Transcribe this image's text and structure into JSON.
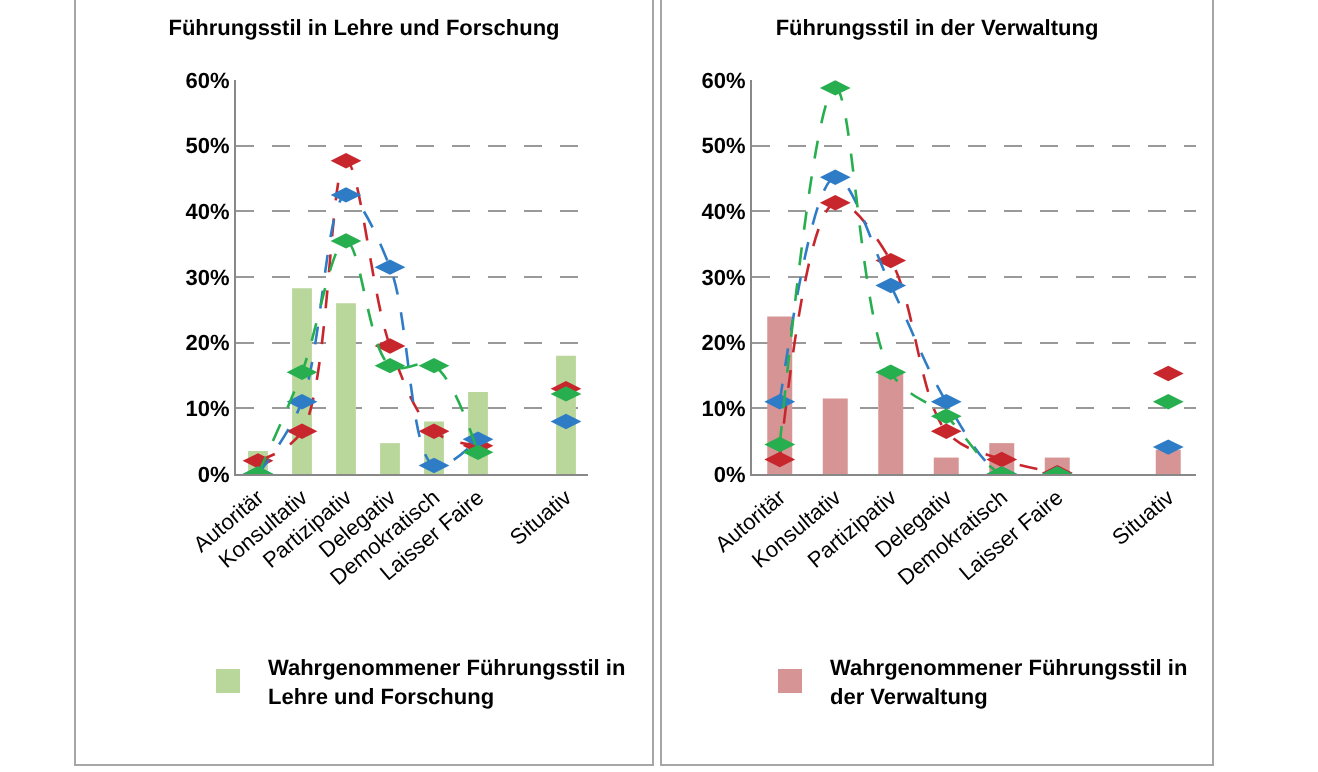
{
  "chart_data": [
    {
      "type": "bar",
      "title": "Führungsstil in Lehre und Forschung",
      "categories": [
        "Autoritär",
        "Konsultativ",
        "Partizipativ",
        "Delegativ",
        "Demokratisch",
        "Laisser Faire",
        null,
        "Situativ"
      ],
      "series": [
        {
          "name": "Wahrgenommener Führungsstil in Lehre und Forschung",
          "color": "#b9d69b",
          "values": [
            3.5,
            28.3,
            26,
            4.7,
            8,
            12.5,
            null,
            18
          ]
        },
        {
          "type": "line",
          "color": "#c8262d",
          "values": [
            2,
            6.5,
            47.7,
            19.5,
            6.5,
            4.3,
            null,
            13
          ]
        },
        {
          "type": "line",
          "color": "#2f7cc6",
          "values": [
            0,
            11,
            42.5,
            31.5,
            1.3,
            5.3,
            null,
            8
          ]
        },
        {
          "type": "line",
          "color": "#27ae4e",
          "values": [
            0,
            15.5,
            35.5,
            16.5,
            16.5,
            3.3,
            null,
            12.2
          ]
        }
      ],
      "ylim": [
        0,
        60
      ],
      "yticks": [
        {
          "value": 0,
          "label": "0%"
        },
        {
          "value": 10,
          "label": "10%"
        },
        {
          "value": 20,
          "label": "20%"
        },
        {
          "value": 30,
          "label": "30%"
        },
        {
          "value": 40,
          "label": "40%"
        },
        {
          "value": 50,
          "label": "50%"
        },
        {
          "value": 60,
          "label": "60%"
        }
      ],
      "grid": "y",
      "legend": "bottom",
      "marker": "diamond",
      "line_style": "dashed"
    },
    {
      "type": "bar",
      "title": "Führungsstil in der Verwaltung",
      "categories": [
        "Autoritär",
        "Konsultativ",
        "Partizipativ",
        "Delegativ",
        "Demokratisch",
        "Laisser Faire",
        null,
        "Situativ"
      ],
      "series": [
        {
          "name": "Wahrgenommener Führungsstil in der Verwaltung",
          "color": "#d69594",
          "values": [
            24,
            11.5,
            15.5,
            2.5,
            4.7,
            2.5,
            null,
            3.7
          ]
        },
        {
          "type": "line",
          "color": "#c8262d",
          "values": [
            2.2,
            41.3,
            32.5,
            6.5,
            2.2,
            0.2,
            null,
            15.3
          ]
        },
        {
          "type": "line",
          "color": "#2f7cc6",
          "values": [
            11,
            45.2,
            28.7,
            11,
            0,
            0,
            null,
            4.1
          ]
        },
        {
          "type": "line",
          "color": "#27ae4e",
          "values": [
            4.5,
            58.8,
            15.5,
            8.8,
            0,
            0,
            null,
            11
          ]
        }
      ],
      "ylim": [
        0,
        60
      ],
      "yticks": [
        {
          "value": 0,
          "label": "0%"
        },
        {
          "value": 10,
          "label": "10%"
        },
        {
          "value": 20,
          "label": "20%"
        },
        {
          "value": 30,
          "label": "30%"
        },
        {
          "value": 40,
          "label": "40%"
        },
        {
          "value": 50,
          "label": "50%"
        },
        {
          "value": 60,
          "label": "60%"
        }
      ],
      "grid": "y",
      "legend": "bottom",
      "marker": "diamond",
      "line_style": "dashed"
    }
  ]
}
